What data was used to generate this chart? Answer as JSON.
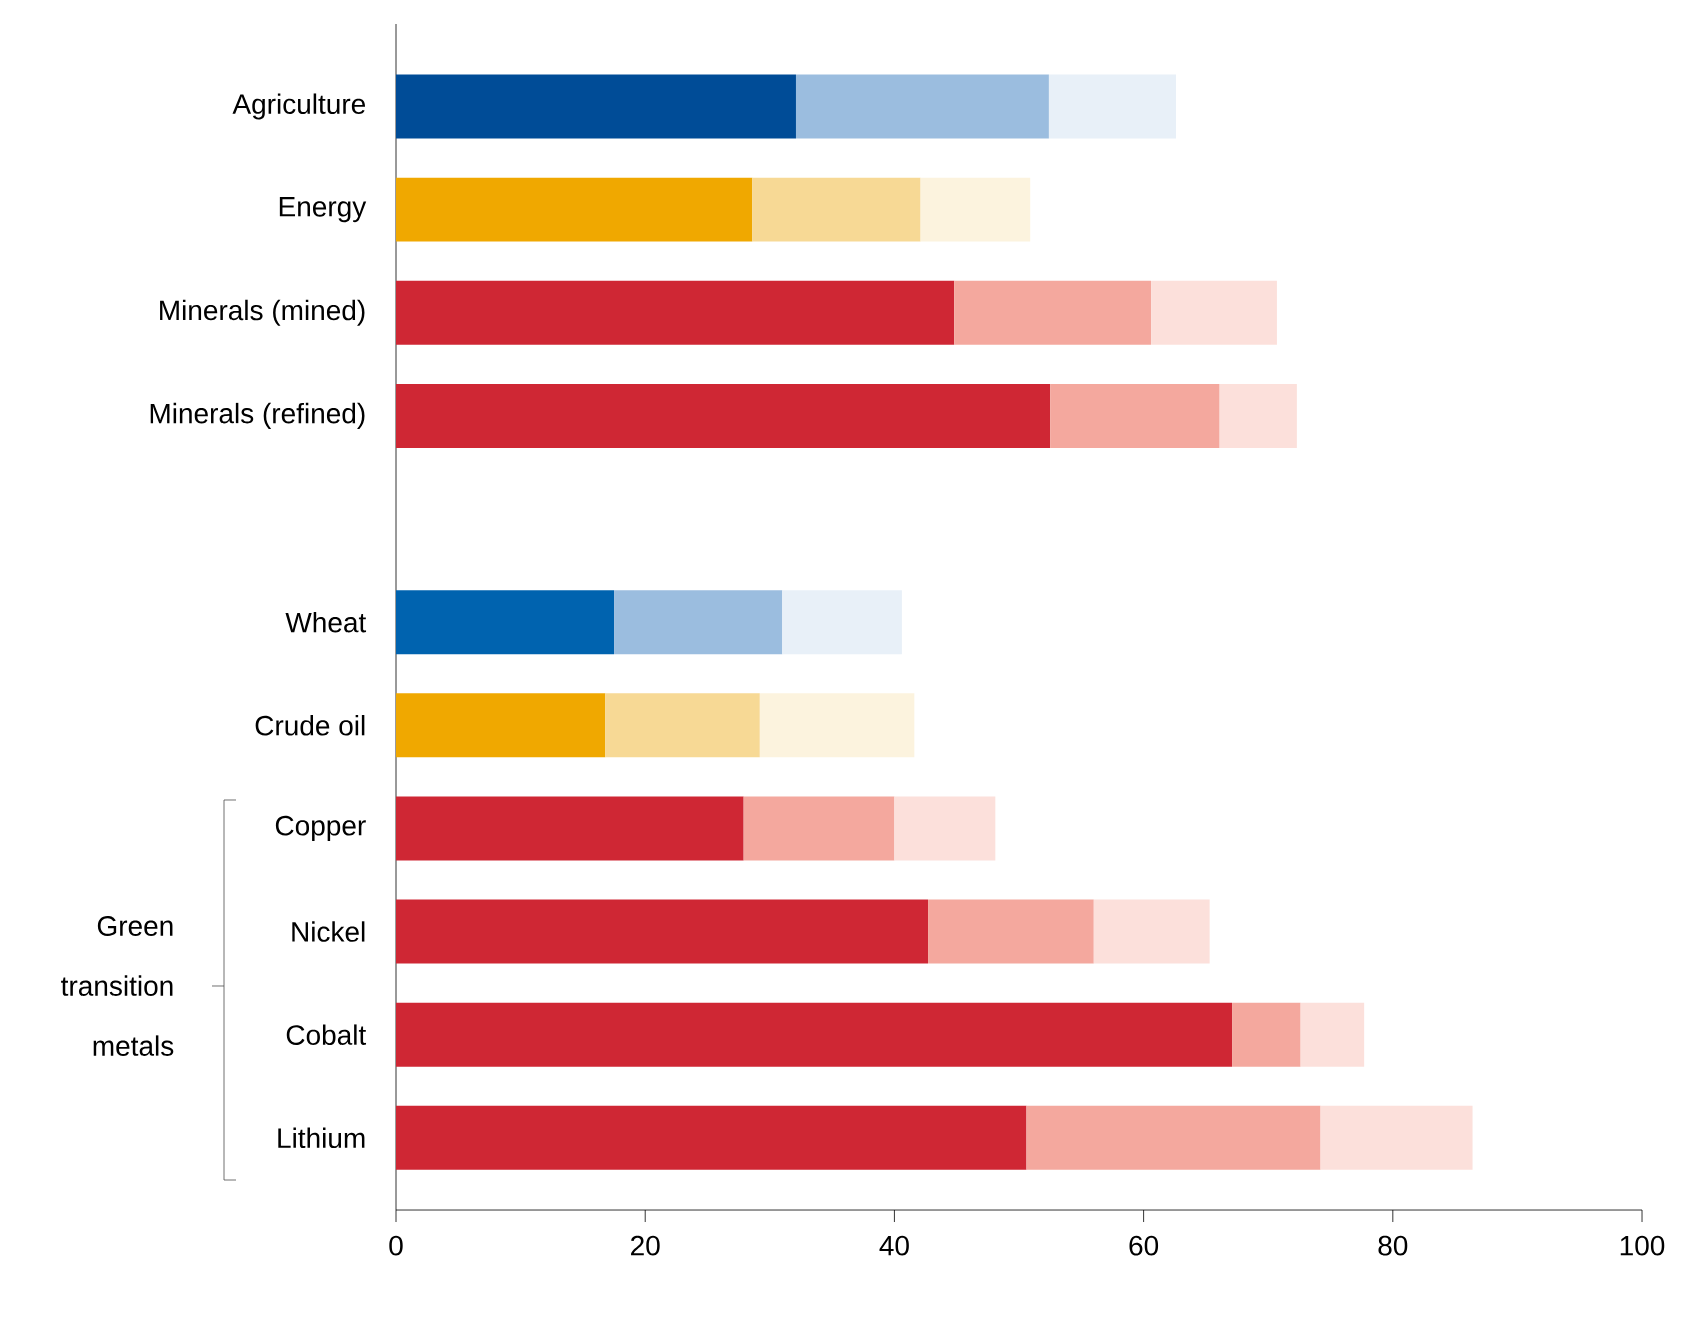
{
  "chart_data": {
    "type": "bar",
    "orientation": "horizontal",
    "stacked": true,
    "categories": [
      "Agriculture",
      "Energy",
      "Minerals (mined)",
      "Minerals (refined)",
      null,
      "Wheat",
      "Crude oil",
      "Copper",
      "Nickel",
      "Cobalt",
      "Lithium"
    ],
    "series": [
      {
        "values": [
          32.1,
          28.6,
          44.8,
          52.5,
          null,
          17.5,
          16.8,
          27.9,
          42.7,
          67.1,
          50.6
        ],
        "colors": [
          "#004c97",
          "#f0a800",
          "#cf2734",
          "#cf2734",
          null,
          "#0063af",
          "#f0a800",
          "#cf2734",
          "#cf2734",
          "#cf2734",
          "#cf2734"
        ]
      },
      {
        "values": [
          20.3,
          13.5,
          15.8,
          13.6,
          null,
          13.5,
          12.4,
          12.1,
          13.3,
          5.5,
          23.6
        ],
        "colors": [
          "#9bbddf",
          "#f7d995",
          "#f4a89e",
          "#f4a89e",
          null,
          "#9bbddf",
          "#f7d995",
          "#f4a89e",
          "#f4a89e",
          "#f4a89e",
          "#f4a89e"
        ]
      },
      {
        "values": [
          10.2,
          8.8,
          10.1,
          6.2,
          null,
          9.6,
          12.4,
          8.1,
          9.3,
          5.1,
          12.2
        ],
        "colors": [
          "#e8f0f8",
          "#fcf3de",
          "#fce0db",
          "#fce0db",
          null,
          "#e8f0f8",
          "#fcf3de",
          "#fce0db",
          "#fce0db",
          "#fce0db",
          "#fce0db"
        ]
      }
    ],
    "xlim": [
      0,
      100
    ],
    "xticks": [
      0,
      20,
      40,
      60,
      80,
      100
    ],
    "grid": false,
    "annotations": [
      "Green transition metals"
    ]
  }
}
